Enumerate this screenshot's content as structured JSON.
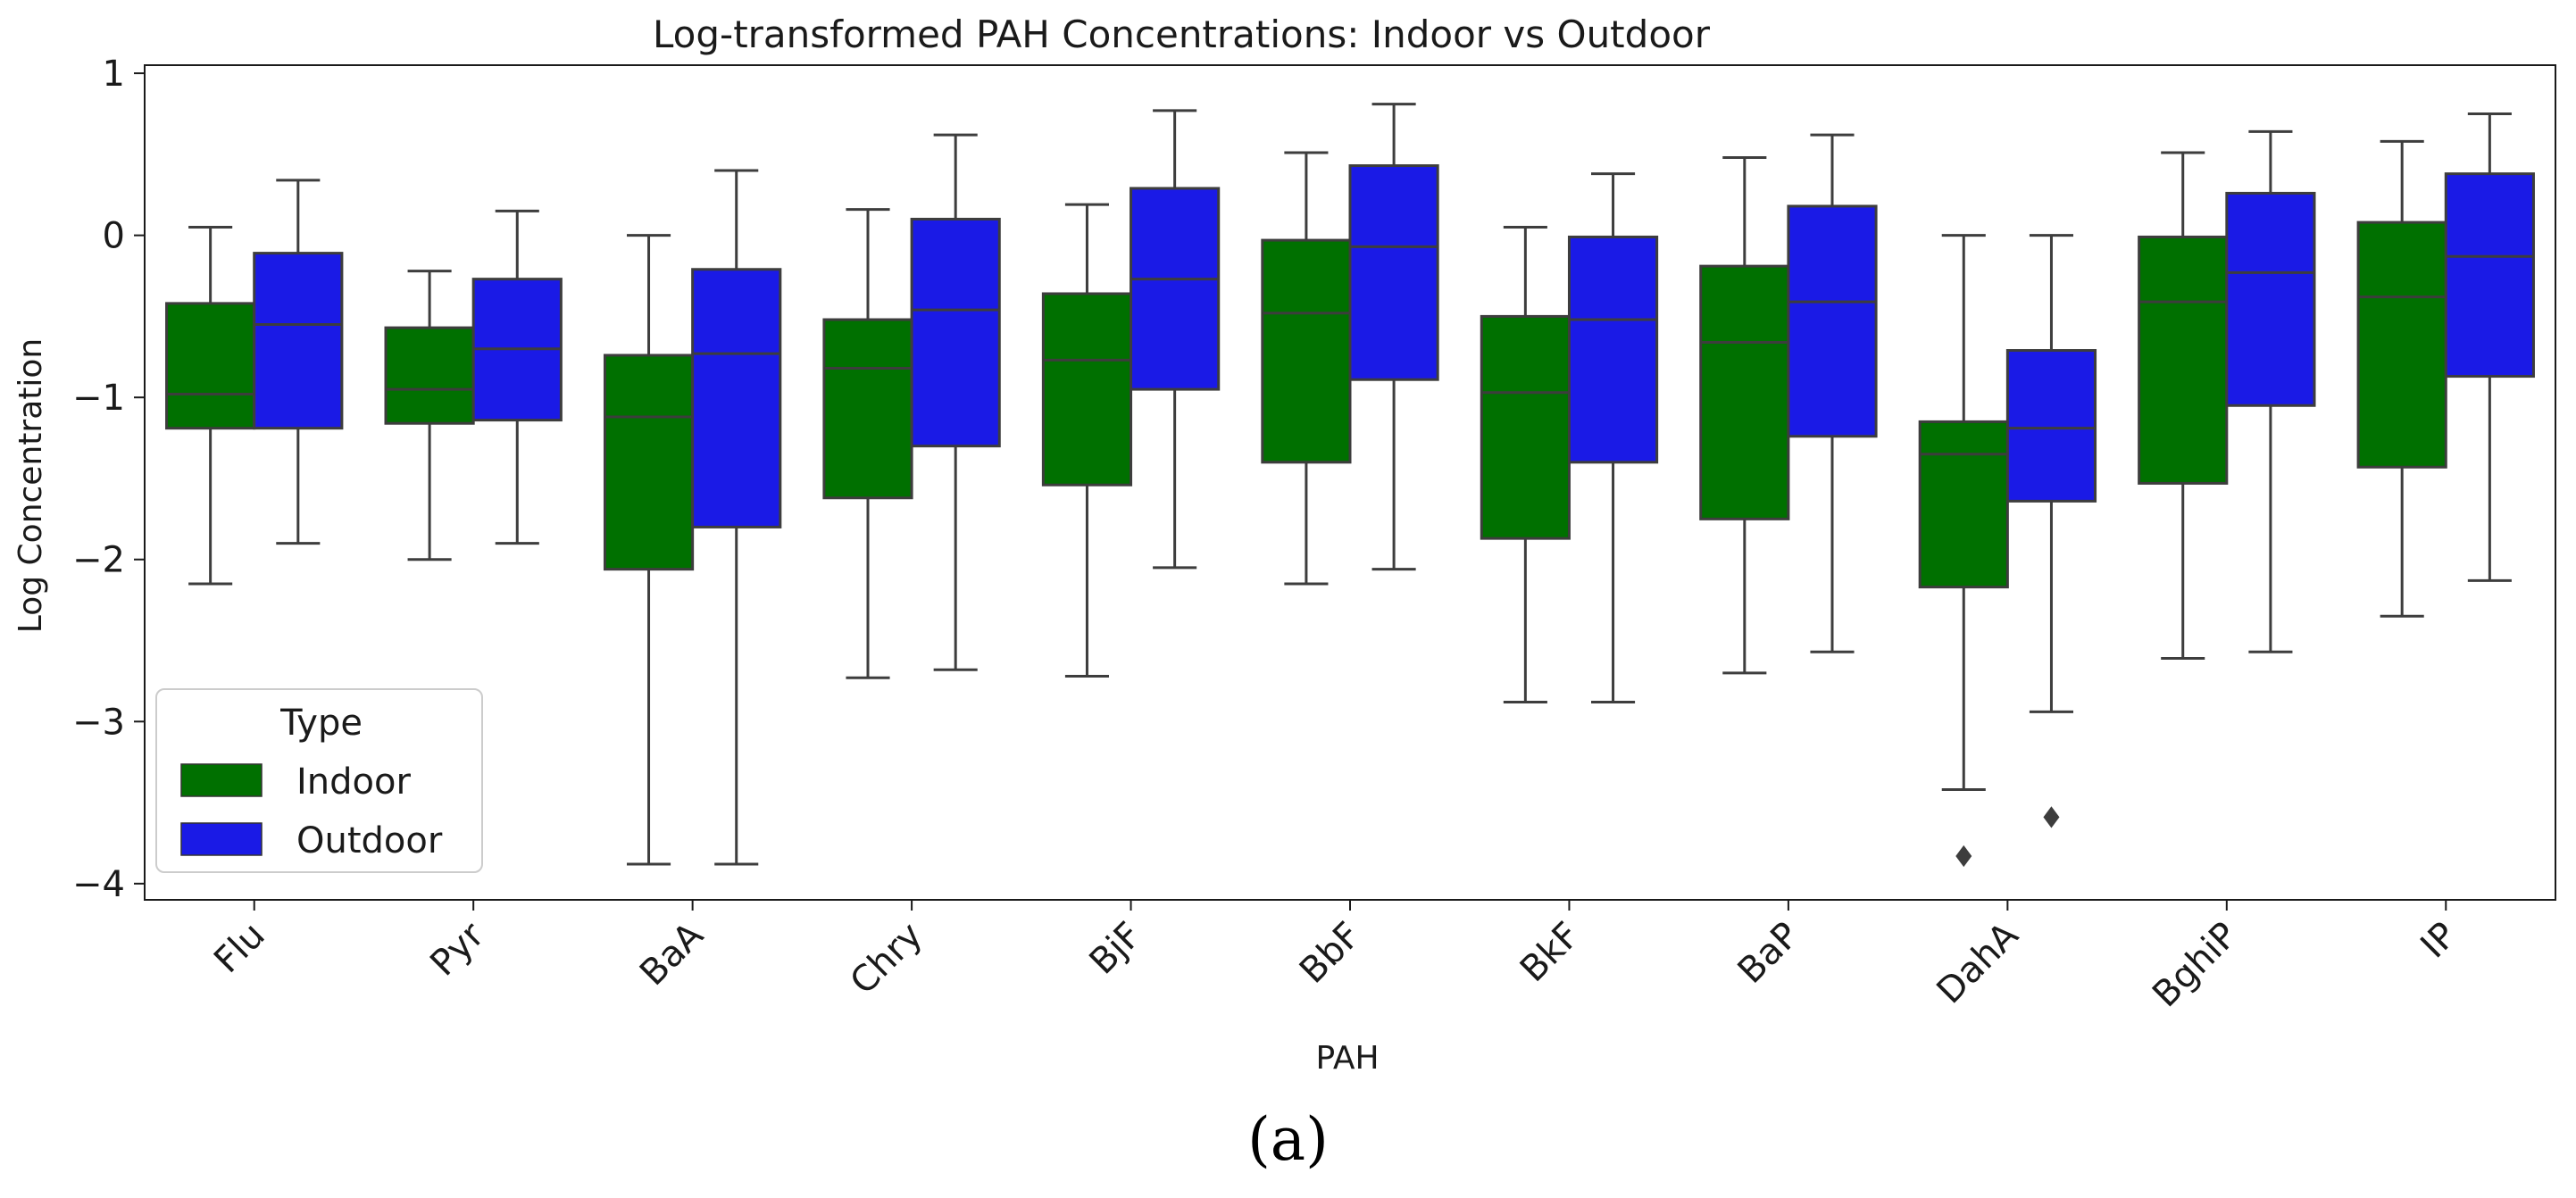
{
  "chart_data": {
    "type": "boxplot",
    "title": "Log-transformed PAH Concentrations: Indoor vs Outdoor",
    "xlabel": "PAH",
    "ylabel": "Log Concentration",
    "ylim": [
      -4.1,
      1.05
    ],
    "yticks": [
      1,
      0,
      -1,
      -2,
      -3,
      -4
    ],
    "ytick_labels": [
      "1",
      "0",
      "−1",
      "−2",
      "−3",
      "−4"
    ],
    "categories": [
      "Flu",
      "Pyr",
      "BaA",
      "Chry",
      "BjF",
      "BbF",
      "BkF",
      "BaP",
      "DahA",
      "BghiP",
      "IP"
    ],
    "legend": {
      "title": "Type",
      "position": "lower-left",
      "entries": [
        "Indoor",
        "Outdoor"
      ]
    },
    "series": [
      {
        "name": "Indoor",
        "color": "#007000",
        "boxes": [
          {
            "whislo": -2.15,
            "q1": -1.19,
            "med": -0.98,
            "q3": -0.42,
            "whishi": 0.05,
            "fliers": []
          },
          {
            "whislo": -2.0,
            "q1": -1.16,
            "med": -0.95,
            "q3": -0.57,
            "whishi": -0.22,
            "fliers": []
          },
          {
            "whislo": -3.88,
            "q1": -2.06,
            "med": -1.12,
            "q3": -0.74,
            "whishi": 0.0,
            "fliers": []
          },
          {
            "whislo": -2.73,
            "q1": -1.62,
            "med": -0.82,
            "q3": -0.52,
            "whishi": 0.16,
            "fliers": []
          },
          {
            "whislo": -2.72,
            "q1": -1.54,
            "med": -0.77,
            "q3": -0.36,
            "whishi": 0.19,
            "fliers": []
          },
          {
            "whislo": -2.15,
            "q1": -1.4,
            "med": -0.48,
            "q3": -0.03,
            "whishi": 0.51,
            "fliers": []
          },
          {
            "whislo": -2.88,
            "q1": -1.87,
            "med": -0.97,
            "q3": -0.5,
            "whishi": 0.05,
            "fliers": []
          },
          {
            "whislo": -2.7,
            "q1": -1.75,
            "med": -0.66,
            "q3": -0.19,
            "whishi": 0.48,
            "fliers": []
          },
          {
            "whislo": -3.42,
            "q1": -2.17,
            "med": -1.35,
            "q3": -1.15,
            "whishi": 0.0,
            "fliers": [
              -3.83
            ]
          },
          {
            "whislo": -2.61,
            "q1": -1.53,
            "med": -0.41,
            "q3": -0.01,
            "whishi": 0.51,
            "fliers": []
          },
          {
            "whislo": -2.35,
            "q1": -1.43,
            "med": -0.38,
            "q3": 0.08,
            "whishi": 0.58,
            "fliers": []
          }
        ]
      },
      {
        "name": "Outdoor",
        "color": "#1a1ae6",
        "boxes": [
          {
            "whislo": -1.9,
            "q1": -1.19,
            "med": -0.55,
            "q3": -0.11,
            "whishi": 0.34,
            "fliers": []
          },
          {
            "whislo": -1.9,
            "q1": -1.14,
            "med": -0.7,
            "q3": -0.27,
            "whishi": 0.15,
            "fliers": []
          },
          {
            "whislo": -3.88,
            "q1": -1.8,
            "med": -0.73,
            "q3": -0.21,
            "whishi": 0.4,
            "fliers": []
          },
          {
            "whislo": -2.68,
            "q1": -1.3,
            "med": -0.46,
            "q3": 0.1,
            "whishi": 0.62,
            "fliers": []
          },
          {
            "whislo": -2.05,
            "q1": -0.95,
            "med": -0.27,
            "q3": 0.29,
            "whishi": 0.77,
            "fliers": []
          },
          {
            "whislo": -2.06,
            "q1": -0.89,
            "med": -0.07,
            "q3": 0.43,
            "whishi": 0.81,
            "fliers": []
          },
          {
            "whislo": -2.88,
            "q1": -1.4,
            "med": -0.52,
            "q3": -0.01,
            "whishi": 0.38,
            "fliers": []
          },
          {
            "whislo": -2.57,
            "q1": -1.24,
            "med": -0.41,
            "q3": 0.18,
            "whishi": 0.62,
            "fliers": []
          },
          {
            "whislo": -2.94,
            "q1": -1.64,
            "med": -1.19,
            "q3": -0.71,
            "whishi": 0.0,
            "fliers": [
              -3.59
            ]
          },
          {
            "whislo": -2.57,
            "q1": -1.05,
            "med": -0.23,
            "q3": 0.26,
            "whishi": 0.64,
            "fliers": []
          },
          {
            "whislo": -2.13,
            "q1": -0.87,
            "med": -0.13,
            "q3": 0.38,
            "whishi": 0.75,
            "fliers": []
          }
        ]
      }
    ]
  },
  "caption": "(a)"
}
